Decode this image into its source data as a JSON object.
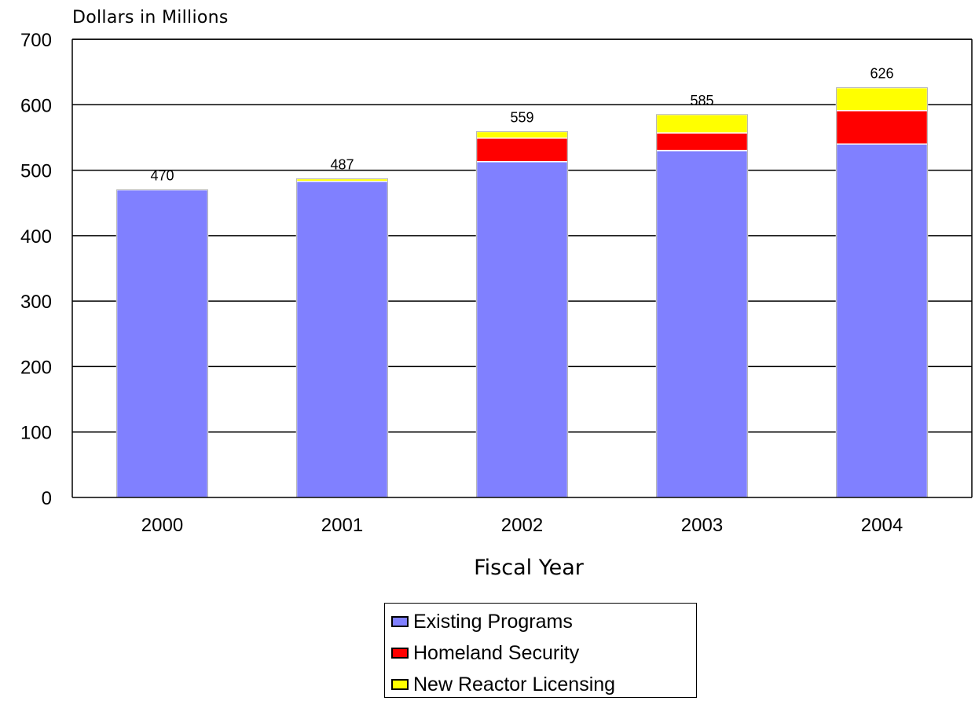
{
  "chart_data": {
    "type": "bar",
    "stacked": true,
    "ylabel": "Dollars in Millions",
    "xlabel": "Fiscal Year",
    "ylim": [
      0,
      700
    ],
    "yticks": [
      0,
      100,
      200,
      300,
      400,
      500,
      600,
      700
    ],
    "grid": true,
    "legend_position": "bottom",
    "categories": [
      "2000",
      "2001",
      "2002",
      "2003",
      "2004"
    ],
    "series": [
      {
        "name": "Existing Programs",
        "color": "#8080ff",
        "values": [
          470,
          483,
          513,
          530,
          540
        ]
      },
      {
        "name": "Homeland Security",
        "color": "#ff0000",
        "values": [
          0,
          0,
          36,
          27,
          51
        ]
      },
      {
        "name": "New Reactor Licensing",
        "color": "#ffff00",
        "values": [
          0,
          4,
          10,
          28,
          35
        ]
      }
    ],
    "totals": [
      "470",
      "487",
      "559",
      "585",
      "626"
    ]
  }
}
